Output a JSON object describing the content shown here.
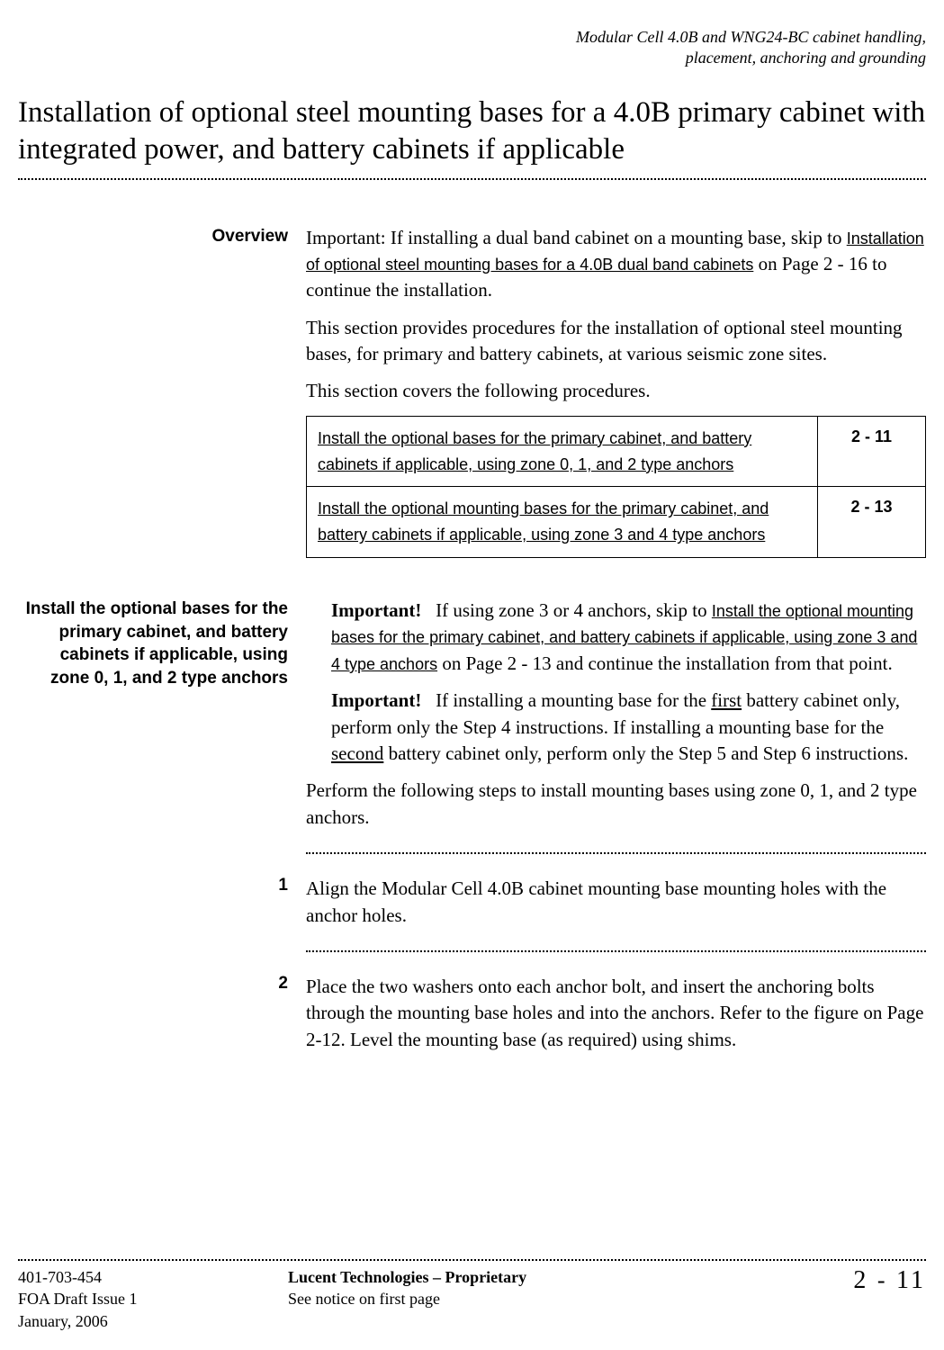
{
  "running_head_line1": "Modular Cell 4.0B and WNG24-BC cabinet handling,",
  "running_head_line2": "placement, anchoring and grounding",
  "title": "Installation of optional steel mounting bases for a 4.0B primary cabinet with integrated power, and battery cabinets if applicable",
  "overview": {
    "label": "Overview",
    "p1_pre": "Important: If installing a dual band cabinet on a mounting base, skip to ",
    "p1_link": "Installation of optional steel mounting bases for a 4.0B dual band cabinets",
    "p1_post": " on Page 2 - 16 to continue the installation.",
    "p2": "This section provides procedures for the installation of optional steel mounting bases, for primary and battery cabinets, at various seismic zone sites.",
    "p3": "This section covers the following procedures."
  },
  "table": {
    "row1_desc": "Install the optional bases for the primary cabinet, and battery cabinets if applicable, using zone 0, 1, and 2 type anchors",
    "row1_page": "2 - 11",
    "row2_desc": "Install the optional mounting bases for the primary cabinet, and battery cabinets if applicable, using zone 3 and 4 type anchors",
    "row2_page": "2 - 13"
  },
  "section2": {
    "label": "Install the optional bases for the primary cabinet, and battery cabinets if applicable, using zone 0, 1, and 2 type anchors",
    "imp1_lead": "Important!",
    "imp1_pre": "   If using zone 3 or 4 anchors, skip to ",
    "imp1_link": "Install the optional mounting bases for the primary cabinet, and battery cabinets if applicable, using zone 3 and 4 type anchors",
    "imp1_post": " on Page 2 - 13 and continue the installation from that point.",
    "imp2_lead": "Important!",
    "imp2_pre": "   If installing a mounting base for the ",
    "imp2_u1": "first",
    "imp2_mid": " battery cabinet only, perform only the Step 4 instructions. If installing a mounting base for the ",
    "imp2_u2": "second",
    "imp2_post": " battery cabinet only, perform only the Step 5 and Step 6 instructions.",
    "p_perform": "Perform the following steps to install mounting bases using zone 0, 1, and 2 type anchors."
  },
  "steps": {
    "s1_num": "1",
    "s1_text": "Align the Modular Cell 4.0B cabinet mounting base mounting holes with the anchor holes.",
    "s2_num": "2",
    "s2_text": "Place the two washers onto each anchor bolt, and insert the anchoring bolts through the mounting base holes and into the anchors. Refer to the figure on Page 2-12. Level the mounting base (as required) using shims."
  },
  "footer": {
    "left1": "401-703-454",
    "left2": "FOA Draft Issue 1",
    "left3": "January, 2006",
    "center1": "Lucent Technologies – Proprietary",
    "center2": "See notice on first page",
    "right_chapter": "2",
    "right_dash": "-",
    "right_page": "11"
  }
}
